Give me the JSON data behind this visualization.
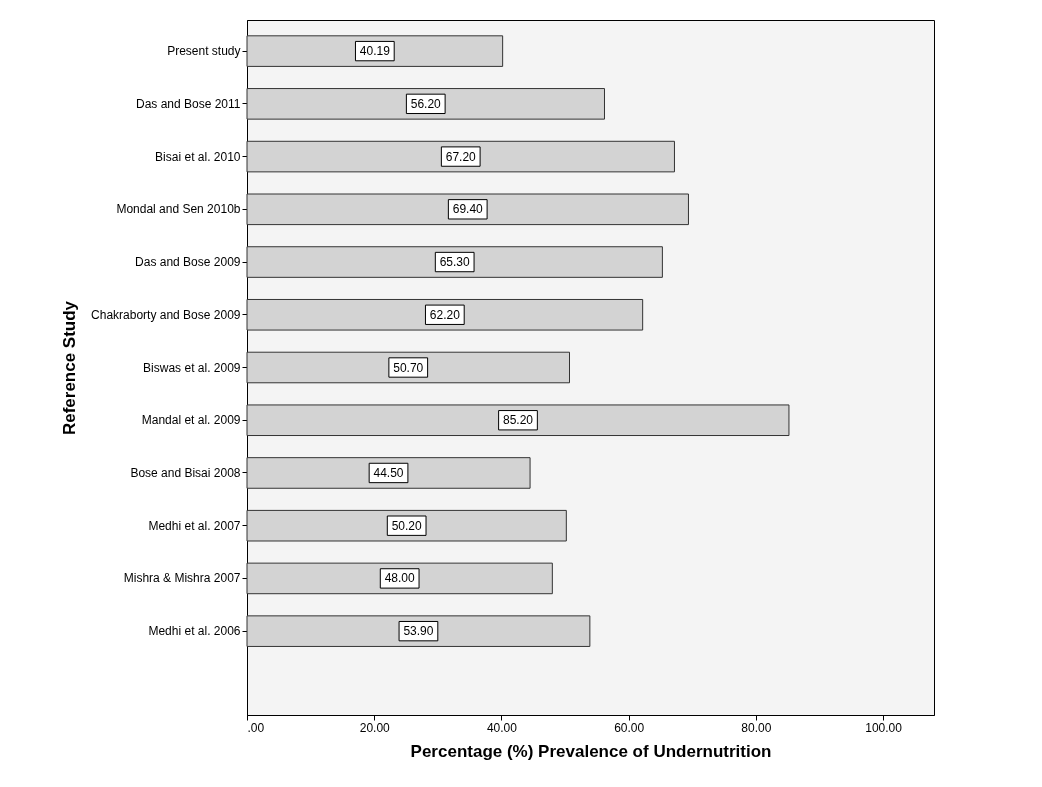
{
  "chart_data": {
    "type": "bar",
    "orientation": "horizontal",
    "xlabel": "Percentage (%) Prevalence of Undernutrition",
    "ylabel": "Reference Study",
    "categories": [
      "Present study",
      "Das and Bose 2011",
      "Bisai et al. 2010",
      "Mondal and Sen 2010b",
      "Das and Bose 2009",
      "Chakraborty and Bose 2009",
      "Biswas et al. 2009",
      "Mandal et al. 2009",
      "Bose and Bisai 2008",
      "Medhi et al. 2007",
      "Mishra & Mishra 2007",
      "Medhi et al. 2006"
    ],
    "values": [
      40.19,
      56.2,
      67.2,
      69.4,
      65.3,
      62.2,
      50.7,
      85.2,
      44.5,
      50.2,
      48.0,
      53.9
    ],
    "value_labels": [
      "40.19",
      "56.20",
      "67.20",
      "69.40",
      "65.30",
      "62.20",
      "50.70",
      "85.20",
      "44.50",
      "50.20",
      "48.00",
      "53.90"
    ],
    "color": "#d3d3d3",
    "xlim": [
      0,
      108
    ],
    "xticks": [
      {
        "value": 0,
        "label": ".00"
      },
      {
        "value": 20,
        "label": "20.00"
      },
      {
        "value": 40,
        "label": "40.00"
      },
      {
        "value": 60,
        "label": "60.00"
      },
      {
        "value": 80,
        "label": "80.00"
      },
      {
        "value": 100,
        "label": "100.00"
      }
    ],
    "grid": false
  }
}
